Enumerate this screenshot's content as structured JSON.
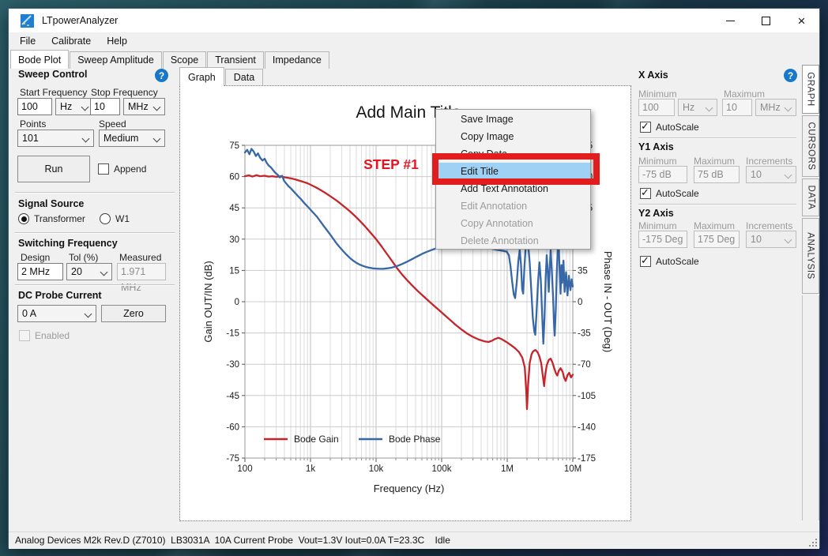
{
  "window": {
    "title": "LTpowerAnalyzer"
  },
  "menu_bar": [
    "File",
    "Calibrate",
    "Help"
  ],
  "main_tabs": [
    {
      "label": "Bode Plot",
      "active": true
    },
    {
      "label": "Sweep Amplitude",
      "active": false
    },
    {
      "label": "Scope",
      "active": false
    },
    {
      "label": "Transient",
      "active": false
    },
    {
      "label": "Impedance",
      "active": false
    }
  ],
  "sweep_control": {
    "title": "Sweep Control",
    "start_frequency": {
      "label": "Start Frequency",
      "value": "100",
      "unit": "Hz"
    },
    "stop_frequency": {
      "label": "Stop Frequency",
      "value": "10",
      "unit": "MHz"
    },
    "points": {
      "label": "Points",
      "value": "101"
    },
    "speed": {
      "label": "Speed",
      "value": "Medium"
    },
    "run_button": "Run",
    "append": {
      "label": "Append",
      "checked": false
    }
  },
  "signal_source": {
    "title": "Signal Source",
    "options": [
      {
        "label": "Transformer",
        "selected": true
      },
      {
        "label": "W1",
        "selected": false
      }
    ]
  },
  "switching_frequency": {
    "title": "Switching Frequency",
    "design": {
      "label": "Design",
      "value": "2 MHz"
    },
    "tol": {
      "label": "Tol (%)",
      "value": "20"
    },
    "measured": {
      "label": "Measured",
      "value": "1.971 MHz"
    }
  },
  "dc_probe_current": {
    "title": "DC Probe Current",
    "value": "0 A",
    "zero_button": "Zero",
    "enabled": {
      "label": "Enabled",
      "checked": false
    }
  },
  "graph_tabs": [
    {
      "label": "Graph",
      "active": true
    },
    {
      "label": "Data",
      "active": false
    }
  ],
  "context_menu": {
    "items": [
      {
        "label": "Save Image",
        "enabled": true,
        "highlighted": false
      },
      {
        "label": "Copy Image",
        "enabled": true,
        "highlighted": false
      },
      {
        "label": "Copy Data",
        "enabled": true,
        "highlighted": false
      },
      {
        "label": "Edit Title",
        "enabled": true,
        "highlighted": true
      },
      {
        "label": "Add Text Annotation",
        "enabled": true,
        "highlighted": false
      },
      {
        "label": "Edit Annotation",
        "enabled": false,
        "highlighted": false
      },
      {
        "label": "Copy Annotation",
        "enabled": false,
        "highlighted": false
      },
      {
        "label": "Delete Annotation",
        "enabled": false,
        "highlighted": false
      }
    ]
  },
  "annotations": {
    "step_label": "STEP #1",
    "step_color": "#e8131f",
    "box_color": "#e11d1d"
  },
  "axes_panel": {
    "x_axis": {
      "title": "X Axis",
      "minimum": {
        "label": "Minimum",
        "value": "100",
        "unit": "Hz"
      },
      "maximum": {
        "label": "Maximum",
        "value": "10",
        "unit": "MHz"
      },
      "autoscale": {
        "label": "AutoScale",
        "checked": true
      }
    },
    "y1_axis": {
      "title": "Y1 Axis",
      "minimum": {
        "label": "Minimum",
        "value": "-75 dB"
      },
      "maximum": {
        "label": "Maximum",
        "value": "75 dB"
      },
      "increments": {
        "label": "Increments",
        "value": "10"
      },
      "autoscale": {
        "label": "AutoScale",
        "checked": true
      }
    },
    "y2_axis": {
      "title": "Y2 Axis",
      "minimum": {
        "label": "Minimum",
        "value": "-175 Deg"
      },
      "maximum": {
        "label": "Maximum",
        "value": "175 Deg"
      },
      "increments": {
        "label": "Increments",
        "value": "10"
      },
      "autoscale": {
        "label": "AutoScale",
        "checked": true
      }
    }
  },
  "side_tabs": [
    {
      "label": "GRAPH",
      "active": true
    },
    {
      "label": "CURSORS",
      "active": false
    },
    {
      "label": "DATA",
      "active": false
    },
    {
      "label": "ANALYSIS",
      "active": false
    }
  ],
  "status_bar": {
    "text": "Analog Devices M2k Rev.D (Z7010)  LB3031A  10A Current Probe  Vout=1.3V Iout=0.0A T=23.3C    Idle"
  },
  "chart_data": {
    "type": "line",
    "title": "Add Main Title",
    "xlabel": "Frequency (Hz)",
    "ylabel_left": "Gain OUT/IN (dB)",
    "ylabel_right": "Phase IN - OUT (Deg)",
    "x_scale": "log",
    "x_range": [
      100,
      10000000
    ],
    "x_ticks": [
      "100",
      "1k",
      "10k",
      "100k",
      "1M",
      "10M"
    ],
    "y_left_range": [
      -75,
      75
    ],
    "y_left_step": 15,
    "y_right_range": [
      -175,
      175
    ],
    "y_right_step": 35,
    "grid": true,
    "legend_position": "bottom-left",
    "series": [
      {
        "name": "Bode Gain",
        "axis": "left",
        "color": "#c4252b",
        "points": [
          [
            100,
            60.2
          ],
          [
            115,
            60.6
          ],
          [
            130,
            60.0
          ],
          [
            150,
            60.7
          ],
          [
            170,
            60.2
          ],
          [
            200,
            60.4
          ],
          [
            230,
            60.0
          ],
          [
            260,
            60.2
          ],
          [
            300,
            59.9
          ],
          [
            350,
            60.1
          ],
          [
            400,
            59.7
          ],
          [
            460,
            59.4
          ],
          [
            530,
            59.0
          ],
          [
            610,
            58.5
          ],
          [
            700,
            57.9
          ],
          [
            800,
            57.3
          ],
          [
            900,
            56.8
          ],
          [
            1000,
            56.1
          ],
          [
            1200,
            54.9
          ],
          [
            1400,
            53.7
          ],
          [
            1700,
            52.1
          ],
          [
            2000,
            50.6
          ],
          [
            2400,
            48.9
          ],
          [
            2800,
            47.3
          ],
          [
            3300,
            45.5
          ],
          [
            3900,
            43.6
          ],
          [
            4700,
            41.3
          ],
          [
            5600,
            38.9
          ],
          [
            6800,
            36.1
          ],
          [
            8200,
            33.2
          ],
          [
            10000,
            30.0
          ],
          [
            12000,
            26.7
          ],
          [
            14500,
            23.1
          ],
          [
            17500,
            19.5
          ],
          [
            21000,
            16.0
          ],
          [
            25000,
            13.0
          ],
          [
            30000,
            10.2
          ],
          [
            36000,
            7.6
          ],
          [
            43000,
            5.2
          ],
          [
            52000,
            2.8
          ],
          [
            62000,
            0.6
          ],
          [
            75000,
            -1.7
          ],
          [
            90000,
            -3.9
          ],
          [
            110000,
            -6.3
          ],
          [
            135000,
            -8.8
          ],
          [
            165000,
            -11.2
          ],
          [
            200000,
            -13.3
          ],
          [
            245000,
            -15.3
          ],
          [
            300000,
            -16.9
          ],
          [
            370000,
            -18.2
          ],
          [
            450000,
            -19.0
          ],
          [
            520000,
            -19.3
          ],
          [
            580000,
            -18.8
          ],
          [
            650000,
            -17.9
          ],
          [
            730000,
            -17.3
          ],
          [
            820000,
            -17.9
          ],
          [
            920000,
            -18.9
          ],
          [
            1000000,
            -19.6
          ],
          [
            1150000,
            -20.9
          ],
          [
            1300000,
            -22.2
          ],
          [
            1500000,
            -24.0
          ],
          [
            1700000,
            -26.8
          ],
          [
            1850000,
            -31.5
          ],
          [
            1950000,
            -43.0
          ],
          [
            2000000,
            -51.5
          ],
          [
            2080000,
            -40.0
          ],
          [
            2200000,
            -29.5
          ],
          [
            2350000,
            -25.2
          ],
          [
            2500000,
            -23.7
          ],
          [
            2700000,
            -23.2
          ],
          [
            2900000,
            -24.2
          ],
          [
            3100000,
            -26.3
          ],
          [
            3300000,
            -29.5
          ],
          [
            3500000,
            -36.0
          ],
          [
            3650000,
            -40.5
          ],
          [
            3800000,
            -35.0
          ],
          [
            4000000,
            -30.5
          ],
          [
            4300000,
            -27.9
          ],
          [
            4600000,
            -27.3
          ],
          [
            4900000,
            -29.2
          ],
          [
            5200000,
            -31.8
          ],
          [
            5500000,
            -34.2
          ],
          [
            5800000,
            -35.4
          ],
          [
            6100000,
            -33.2
          ],
          [
            6500000,
            -31.9
          ],
          [
            7000000,
            -33.6
          ],
          [
            7400000,
            -36.6
          ],
          [
            7800000,
            -38.0
          ],
          [
            8300000,
            -35.2
          ],
          [
            8800000,
            -34.1
          ],
          [
            9400000,
            -36.3
          ],
          [
            10000000,
            -35.0
          ]
        ]
      },
      {
        "name": "Bode Phase",
        "axis": "right",
        "color": "#3767a7",
        "points": [
          [
            100,
            167
          ],
          [
            108,
            170
          ],
          [
            117,
            165
          ],
          [
            126,
            171
          ],
          [
            136,
            168
          ],
          [
            147,
            163
          ],
          [
            158,
            166
          ],
          [
            171,
            161
          ],
          [
            185,
            158
          ],
          [
            200,
            160
          ],
          [
            216,
            155
          ],
          [
            233,
            152
          ],
          [
            251,
            150
          ],
          [
            271,
            147
          ],
          [
            293,
            144
          ],
          [
            316,
            142
          ],
          [
            341,
            139
          ],
          [
            368,
            141
          ],
          [
            398,
            135
          ],
          [
            430,
            132
          ],
          [
            464,
            129
          ],
          [
            500,
            127
          ],
          [
            560,
            123
          ],
          [
            630,
            119
          ],
          [
            710,
            115
          ],
          [
            790,
            111
          ],
          [
            890,
            107
          ],
          [
            1000,
            103
          ],
          [
            1120,
            99
          ],
          [
            1260,
            95
          ],
          [
            1410,
            90
          ],
          [
            1580,
            85
          ],
          [
            1780,
            80
          ],
          [
            2000,
            75
          ],
          [
            2240,
            70
          ],
          [
            2510,
            65
          ],
          [
            2820,
            60.5
          ],
          [
            3160,
            56.5
          ],
          [
            3550,
            52.5
          ],
          [
            3980,
            49
          ],
          [
            4470,
            46
          ],
          [
            5010,
            43.5
          ],
          [
            5620,
            41.5
          ],
          [
            6310,
            40
          ],
          [
            7080,
            38.8
          ],
          [
            7940,
            38
          ],
          [
            8910,
            37.3
          ],
          [
            10000,
            37
          ],
          [
            11500,
            36.8
          ],
          [
            13000,
            36.9
          ],
          [
            15000,
            37.4
          ],
          [
            17500,
            38.3
          ],
          [
            20000,
            39.5
          ],
          [
            23000,
            41
          ],
          [
            26500,
            43
          ],
          [
            30500,
            45.2
          ],
          [
            35000,
            47.5
          ],
          [
            40000,
            49.8
          ],
          [
            46000,
            52
          ],
          [
            52000,
            54
          ],
          [
            59000,
            55.8
          ],
          [
            67000,
            57.3
          ],
          [
            76000,
            58.8
          ],
          [
            86000,
            60
          ],
          [
            100000,
            61.5
          ],
          [
            140000,
            63.5
          ],
          [
            200000,
            64.5
          ],
          [
            300000,
            63.5
          ],
          [
            420000,
            61.5
          ],
          [
            560000,
            59.5
          ],
          [
            700000,
            58
          ],
          [
            850000,
            57
          ],
          [
            980000,
            56
          ],
          [
            1060000,
            52
          ],
          [
            1120000,
            40
          ],
          [
            1190000,
            22
          ],
          [
            1260000,
            8
          ],
          [
            1320000,
            4
          ],
          [
            1400000,
            22
          ],
          [
            1480000,
            46
          ],
          [
            1550000,
            58
          ],
          [
            1620000,
            42
          ],
          [
            1690000,
            14
          ],
          [
            1750000,
            9
          ],
          [
            1820000,
            36
          ],
          [
            1900000,
            58
          ],
          [
            2000000,
            70
          ],
          [
            2100000,
            62
          ],
          [
            2200000,
            44
          ],
          [
            2330000,
            12
          ],
          [
            2460000,
            -18
          ],
          [
            2580000,
            -33
          ],
          [
            2680000,
            -37
          ],
          [
            2800000,
            -12
          ],
          [
            2950000,
            22
          ],
          [
            3100000,
            44
          ],
          [
            3250000,
            24
          ],
          [
            3400000,
            -12
          ],
          [
            3550000,
            -47
          ],
          [
            3700000,
            -18
          ],
          [
            3850000,
            26
          ],
          [
            4000000,
            52
          ],
          [
            4150000,
            34
          ],
          [
            4300000,
            11
          ],
          [
            4450000,
            39
          ],
          [
            4600000,
            58
          ],
          [
            4800000,
            33
          ],
          [
            5000000,
            6
          ],
          [
            5150000,
            -22
          ],
          [
            5300000,
            -38
          ],
          [
            5500000,
            -8
          ],
          [
            5700000,
            32
          ],
          [
            5900000,
            60
          ],
          [
            6100000,
            65
          ],
          [
            6300000,
            34
          ],
          [
            6500000,
            9
          ],
          [
            6700000,
            41
          ],
          [
            6900000,
            21
          ],
          [
            7200000,
            46
          ],
          [
            7500000,
            11
          ],
          [
            7900000,
            33
          ],
          [
            8300000,
            7
          ],
          [
            8700000,
            29
          ],
          [
            9200000,
            13
          ],
          [
            9600000,
            25
          ],
          [
            10000000,
            17
          ]
        ]
      }
    ]
  }
}
